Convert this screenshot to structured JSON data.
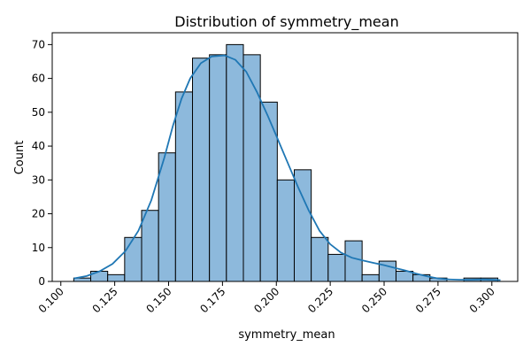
{
  "chart_data": {
    "type": "bar",
    "title": "Distribution of symmetry_mean",
    "xlabel": "symmetry_mean",
    "ylabel": "Count",
    "xlim": [
      0.096,
      0.312
    ],
    "ylim": [
      0,
      73.5
    ],
    "x_ticks": [
      0.1,
      0.125,
      0.15,
      0.175,
      0.2,
      0.225,
      0.25,
      0.275,
      0.3
    ],
    "x_tick_labels": [
      "0.100",
      "0.125",
      "0.150",
      "0.175",
      "0.200",
      "0.225",
      "0.250",
      "0.275",
      "0.300"
    ],
    "y_ticks": [
      0,
      10,
      20,
      30,
      40,
      50,
      60,
      70
    ],
    "y_tick_labels": [
      "0",
      "10",
      "20",
      "30",
      "40",
      "50",
      "60",
      "70"
    ],
    "bin_start": 0.106,
    "bin_width": 0.00787,
    "values": [
      1,
      3,
      2,
      13,
      21,
      38,
      56,
      66,
      67,
      70,
      67,
      53,
      30,
      33,
      13,
      8,
      12,
      2,
      6,
      3,
      2,
      1,
      0,
      1,
      1
    ],
    "kde": {
      "x": [
        0.106,
        0.112,
        0.118,
        0.124,
        0.13,
        0.136,
        0.142,
        0.148,
        0.152,
        0.156,
        0.16,
        0.165,
        0.17,
        0.176,
        0.181,
        0.186,
        0.191,
        0.196,
        0.2,
        0.205,
        0.21,
        0.215,
        0.22,
        0.225,
        0.23,
        0.235,
        0.24,
        0.245,
        0.25,
        0.255,
        0.26,
        0.265,
        0.27,
        0.275,
        0.28,
        0.285,
        0.29,
        0.296,
        0.304
      ],
      "y": [
        0.9,
        1.6,
        3.0,
        5.2,
        9.0,
        15.0,
        24.0,
        36.5,
        46.0,
        54.0,
        60.0,
        64.5,
        66.5,
        66.8,
        65.5,
        62.0,
        56.0,
        49.0,
        43.0,
        35.5,
        28.0,
        21.0,
        15.0,
        11.0,
        8.5,
        7.0,
        6.2,
        5.5,
        4.8,
        4.0,
        3.2,
        2.3,
        1.5,
        0.9,
        0.6,
        0.5,
        0.5,
        0.6,
        0.4
      ]
    },
    "grid": false,
    "colors": {
      "bar_fill": "#8db9dc",
      "bar_edge": "#000000",
      "kde_line": "#1f77b4"
    }
  }
}
